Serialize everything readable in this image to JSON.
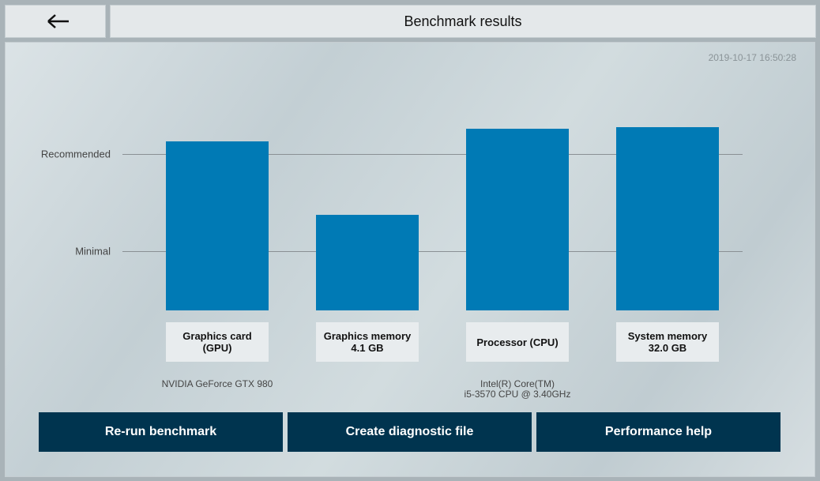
{
  "header": {
    "title": "Benchmark results"
  },
  "timestamp": "2019-10-17 16:50:28",
  "chart_data": {
    "type": "bar",
    "categories": [
      "Graphics card\n(GPU)",
      "Graphics memory\n4.1 GB",
      "Processor (CPU)",
      "System memory\n32.0 GB"
    ],
    "hardware": [
      "NVIDIA GeForce GTX 980",
      null,
      "Intel(R) Core(TM)\ni5-3570 CPU @ 3.40GHz",
      null
    ],
    "values": [
      108,
      61,
      116,
      117
    ],
    "color": "#007ab5",
    "ylim": [
      0,
      120
    ],
    "yticks": [
      {
        "value": 38,
        "label": "Minimal"
      },
      {
        "value": 100,
        "label": "Recommended"
      }
    ],
    "grid": true
  },
  "buttons": [
    "Re-run benchmark",
    "Create diagnostic file",
    "Performance help"
  ]
}
